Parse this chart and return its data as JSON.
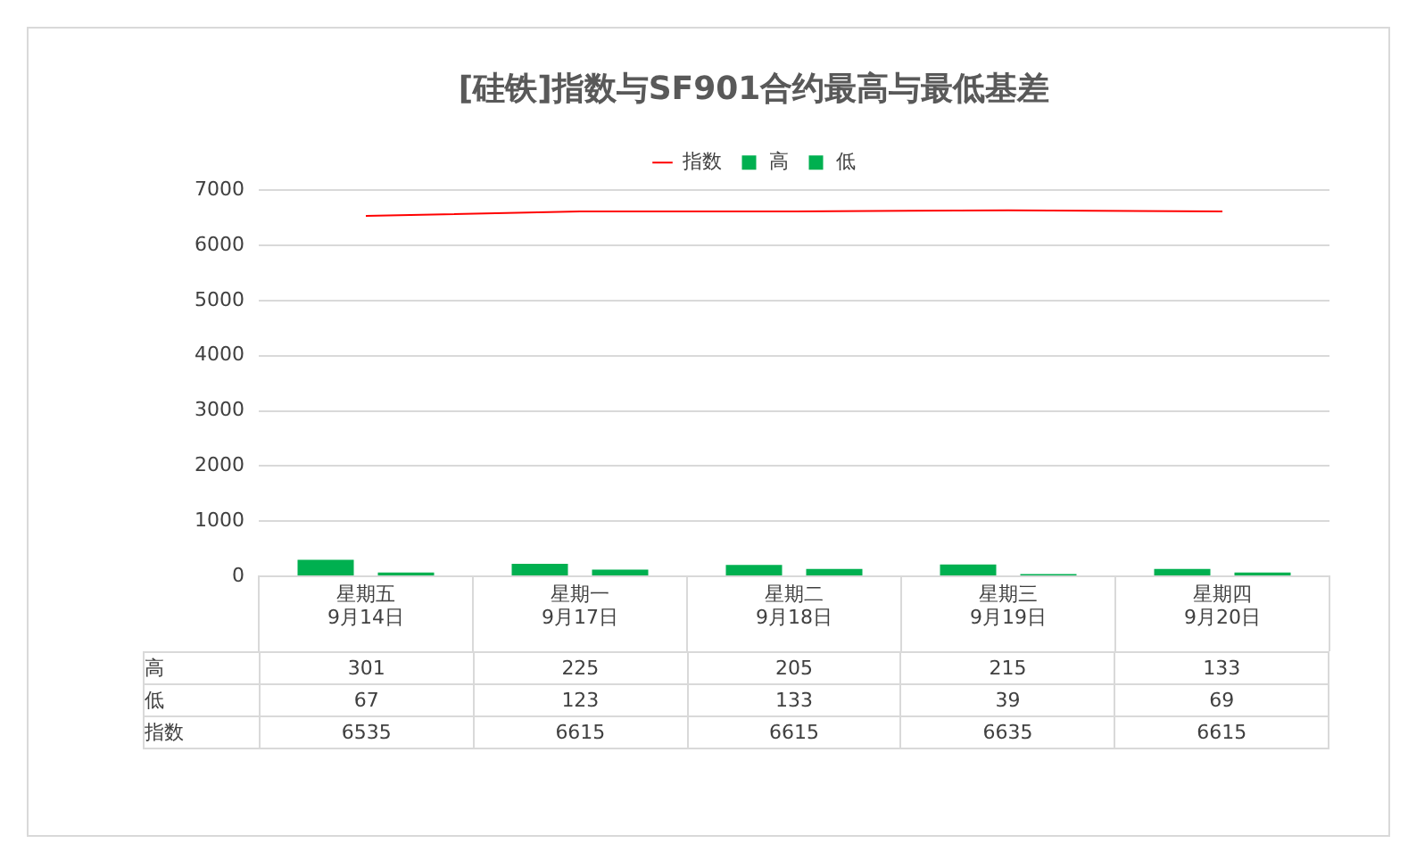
{
  "chart_data": {
    "type": "bar",
    "title": "[硅铁]指数与SF901合约最高与最低基差",
    "categories": [
      "星期五 9月14日",
      "星期一 9月17日",
      "星期二 9月18日",
      "星期三 9月19日",
      "星期四 9月20日"
    ],
    "series": [
      {
        "name": "高",
        "color": "#00b050",
        "values": [
          301,
          225,
          205,
          215,
          133
        ]
      },
      {
        "name": "低",
        "color": "#00b050",
        "values": [
          67,
          123,
          133,
          39,
          69
        ]
      },
      {
        "name": "指数",
        "type": "line",
        "color": "#ff0000",
        "values": [
          6535,
          6615,
          6615,
          6635,
          6615
        ]
      }
    ],
    "ylim": [
      0,
      7000
    ],
    "yticks": [
      0,
      1000,
      2000,
      3000,
      4000,
      5000,
      6000,
      7000
    ],
    "grid": "y",
    "legend": "top",
    "data_labels": true,
    "marker": "none"
  }
}
